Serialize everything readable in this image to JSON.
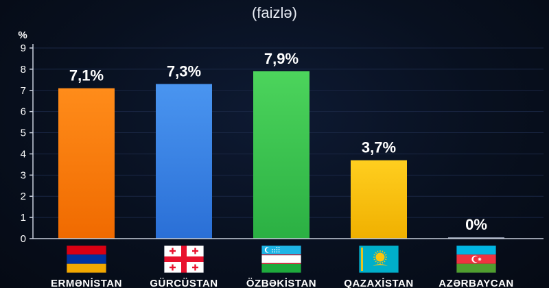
{
  "chart_data": {
    "type": "bar",
    "subtitle": "(faizlə)",
    "ylabel": "%",
    "ylim": [
      0,
      9
    ],
    "yticks": [
      0,
      1,
      2,
      3,
      4,
      5,
      6,
      7,
      8,
      9
    ],
    "grid": true,
    "categories": [
      "ERMƏNİSTAN",
      "GÜRCÜSTAN",
      "ÖZBƏKİSTAN",
      "QAZAXİSTAN",
      "AZƏRBAYCAN"
    ],
    "values": [
      7.1,
      7.3,
      7.9,
      3.7,
      0
    ],
    "data_labels": [
      "7,1%",
      "7,3%",
      "7,9%",
      "3,7%",
      "0%"
    ],
    "colors": [
      "#ff7a0a",
      "#3a83e6",
      "#3cc44e",
      "#f5bf10",
      "#8a93a5"
    ],
    "flags": [
      "armenia-flag-icon",
      "georgia-flag-icon",
      "uzbekistan-flag-icon",
      "kazakhstan-flag-icon",
      "azerbaijan-flag-icon"
    ]
  }
}
